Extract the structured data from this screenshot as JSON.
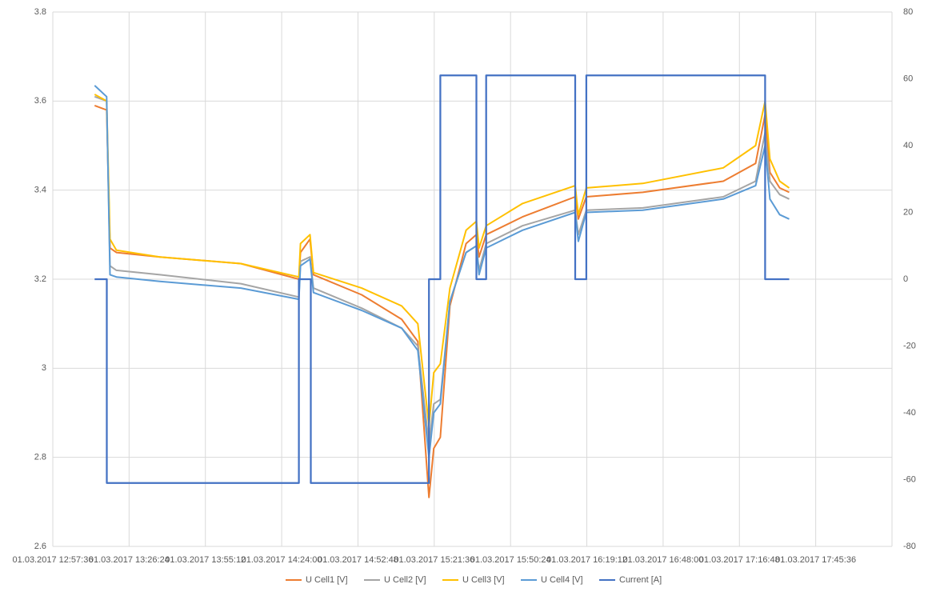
{
  "chart_data": {
    "type": "line",
    "xlim": [
      "01.03.2017 12:57:36",
      "01.03.2017 18:14:24"
    ],
    "xticks": [
      "01.03.2017 12:57:36",
      "01.03.2017 13:26:24",
      "01.03.2017 13:55:12",
      "01.03.2017 14:24:00",
      "01.03.2017 14:52:48",
      "01.03.2017 15:21:36",
      "01.03.2017 15:50:24",
      "01.03.2017 16:19:12",
      "01.03.2017 16:48:00",
      "01.03.2017 17:16:48",
      "01.03.2017 17:45:36"
    ],
    "ylim": [
      2.6,
      3.8
    ],
    "yticks": [
      2.6,
      2.8,
      3,
      3.2,
      3.4,
      3.6,
      3.8
    ],
    "y2lim": [
      -80,
      80
    ],
    "y2ticks": [
      -80,
      -60,
      -40,
      -20,
      0,
      20,
      40,
      60,
      80
    ],
    "grid": true,
    "legend": "bottom",
    "series": [
      {
        "name": "U Cell1 [V]",
        "color": "#ed7d31",
        "x": [
          "01.03.2017 13:13:24",
          "01.03.2017 13:17:56",
          "01.03.2017 13:19:12",
          "01.03.2017 13:21:36",
          "01.03.2017 13:38:00",
          "01.03.2017 14:08:36",
          "01.03.2017 14:30:30",
          "01.03.2017 14:31:06",
          "01.03.2017 14:34:42",
          "01.03.2017 14:36:00",
          "01.03.2017 14:54:12",
          "01.03.2017 15:09:18",
          "01.03.2017 15:15:24",
          "01.03.2017 15:19:36",
          "01.03.2017 15:21:24",
          "01.03.2017 15:23:54",
          "01.03.2017 15:27:30",
          "01.03.2017 15:33:36",
          "01.03.2017 15:37:30",
          "01.03.2017 15:38:30",
          "01.03.2017 15:41:12",
          "01.03.2017 15:54:54",
          "01.03.2017 16:14:48",
          "01.03.2017 16:16:00",
          "01.03.2017 16:19:00",
          "01.03.2017 16:40:18",
          "01.03.2017 17:10:42",
          "01.03.2017 17:22:54",
          "01.03.2017 17:26:30",
          "01.03.2017 17:28:18",
          "01.03.2017 17:32:00",
          "01.03.2017 17:35:36"
        ],
        "values": [
          3.59,
          3.58,
          3.27,
          3.26,
          3.25,
          3.235,
          3.2,
          3.26,
          3.29,
          3.21,
          3.165,
          3.11,
          3.06,
          2.71,
          2.82,
          2.845,
          3.14,
          3.28,
          3.3,
          3.25,
          3.3,
          3.34,
          3.385,
          3.335,
          3.385,
          3.395,
          3.42,
          3.46,
          3.57,
          3.44,
          3.405,
          3.395
        ]
      },
      {
        "name": "U Cell2 [V]",
        "color": "#a5a5a5",
        "x": [
          "01.03.2017 13:13:24",
          "01.03.2017 13:17:56",
          "01.03.2017 13:19:12",
          "01.03.2017 13:21:36",
          "01.03.2017 13:38:00",
          "01.03.2017 14:08:36",
          "01.03.2017 14:30:30",
          "01.03.2017 14:31:06",
          "01.03.2017 14:34:42",
          "01.03.2017 14:36:00",
          "01.03.2017 14:54:12",
          "01.03.2017 15:09:18",
          "01.03.2017 15:15:24",
          "01.03.2017 15:19:36",
          "01.03.2017 15:21:24",
          "01.03.2017 15:23:54",
          "01.03.2017 15:27:30",
          "01.03.2017 15:33:36",
          "01.03.2017 15:37:30",
          "01.03.2017 15:38:30",
          "01.03.2017 15:41:12",
          "01.03.2017 15:54:54",
          "01.03.2017 16:14:48",
          "01.03.2017 16:16:00",
          "01.03.2017 16:19:00",
          "01.03.2017 16:40:18",
          "01.03.2017 17:10:42",
          "01.03.2017 17:22:54",
          "01.03.2017 17:26:30",
          "01.03.2017 17:28:18",
          "01.03.2017 17:32:00",
          "01.03.2017 17:35:36"
        ],
        "values": [
          3.61,
          3.6,
          3.23,
          3.22,
          3.21,
          3.19,
          3.16,
          3.24,
          3.25,
          3.18,
          3.135,
          3.09,
          3.05,
          2.83,
          2.92,
          2.93,
          3.15,
          3.26,
          3.275,
          3.22,
          3.28,
          3.32,
          3.355,
          3.3,
          3.355,
          3.36,
          3.385,
          3.42,
          3.53,
          3.42,
          3.39,
          3.38
        ]
      },
      {
        "name": "U Cell3 [V]",
        "color": "#ffc000",
        "x": [
          "01.03.2017 13:13:24",
          "01.03.2017 13:17:56",
          "01.03.2017 13:19:12",
          "01.03.2017 13:21:36",
          "01.03.2017 13:38:00",
          "01.03.2017 14:08:36",
          "01.03.2017 14:30:30",
          "01.03.2017 14:31:06",
          "01.03.2017 14:34:42",
          "01.03.2017 14:36:00",
          "01.03.2017 14:54:12",
          "01.03.2017 15:09:18",
          "01.03.2017 15:15:24",
          "01.03.2017 15:19:36",
          "01.03.2017 15:21:24",
          "01.03.2017 15:23:54",
          "01.03.2017 15:27:30",
          "01.03.2017 15:33:36",
          "01.03.2017 15:37:30",
          "01.03.2017 15:38:30",
          "01.03.2017 15:41:12",
          "01.03.2017 15:54:54",
          "01.03.2017 16:14:48",
          "01.03.2017 16:16:00",
          "01.03.2017 16:19:00",
          "01.03.2017 16:40:18",
          "01.03.2017 17:10:42",
          "01.03.2017 17:22:54",
          "01.03.2017 17:26:30",
          "01.03.2017 17:28:18",
          "01.03.2017 17:32:00",
          "01.03.2017 17:35:36"
        ],
        "values": [
          3.615,
          3.6,
          3.29,
          3.265,
          3.25,
          3.235,
          3.205,
          3.28,
          3.3,
          3.215,
          3.18,
          3.14,
          3.1,
          2.87,
          2.99,
          3.01,
          3.18,
          3.31,
          3.33,
          3.27,
          3.32,
          3.37,
          3.41,
          3.345,
          3.405,
          3.415,
          3.45,
          3.5,
          3.6,
          3.47,
          3.42,
          3.405
        ]
      },
      {
        "name": "U Cell4 [V]",
        "color": "#5b9bd5",
        "x": [
          "01.03.2017 13:13:24",
          "01.03.2017 13:17:56",
          "01.03.2017 13:19:12",
          "01.03.2017 13:21:36",
          "01.03.2017 13:38:00",
          "01.03.2017 14:08:36",
          "01.03.2017 14:30:30",
          "01.03.2017 14:31:06",
          "01.03.2017 14:34:42",
          "01.03.2017 14:36:00",
          "01.03.2017 14:54:12",
          "01.03.2017 15:09:18",
          "01.03.2017 15:15:24",
          "01.03.2017 15:19:36",
          "01.03.2017 15:21:24",
          "01.03.2017 15:23:54",
          "01.03.2017 15:27:30",
          "01.03.2017 15:33:36",
          "01.03.2017 15:37:30",
          "01.03.2017 15:38:30",
          "01.03.2017 15:41:12",
          "01.03.2017 15:54:54",
          "01.03.2017 16:14:48",
          "01.03.2017 16:16:00",
          "01.03.2017 16:19:00",
          "01.03.2017 16:40:18",
          "01.03.2017 17:10:42",
          "01.03.2017 17:22:54",
          "01.03.2017 17:26:30",
          "01.03.2017 17:28:18",
          "01.03.2017 17:32:00",
          "01.03.2017 17:35:36"
        ],
        "values": [
          3.635,
          3.61,
          3.21,
          3.205,
          3.195,
          3.18,
          3.155,
          3.23,
          3.245,
          3.17,
          3.13,
          3.09,
          3.04,
          2.8,
          2.9,
          2.92,
          3.15,
          3.26,
          3.275,
          3.21,
          3.27,
          3.31,
          3.35,
          3.285,
          3.35,
          3.355,
          3.38,
          3.41,
          3.5,
          3.38,
          3.345,
          3.335
        ]
      },
      {
        "name": "Current [A]",
        "color": "#4472c4",
        "axis": "y2",
        "x": [
          "01.03.2017 13:13:24",
          "01.03.2017 13:18:00",
          "01.03.2017 13:18:00",
          "01.03.2017 14:30:30",
          "01.03.2017 14:30:30",
          "01.03.2017 14:35:00",
          "01.03.2017 14:35:00",
          "01.03.2017 15:19:36",
          "01.03.2017 15:19:36",
          "01.03.2017 15:23:54",
          "01.03.2017 15:23:54",
          "01.03.2017 15:37:30",
          "01.03.2017 15:37:30",
          "01.03.2017 15:41:12",
          "01.03.2017 15:41:12",
          "01.03.2017 16:14:48",
          "01.03.2017 16:14:48",
          "01.03.2017 16:19:00",
          "01.03.2017 16:19:00",
          "01.03.2017 17:26:30",
          "01.03.2017 17:26:30",
          "01.03.2017 17:35:36"
        ],
        "values": [
          0,
          0,
          -61,
          -61,
          0,
          0,
          -61,
          -61,
          0,
          0,
          61,
          61,
          0,
          0,
          61,
          61,
          0,
          0,
          61,
          61,
          0,
          0
        ]
      }
    ]
  }
}
